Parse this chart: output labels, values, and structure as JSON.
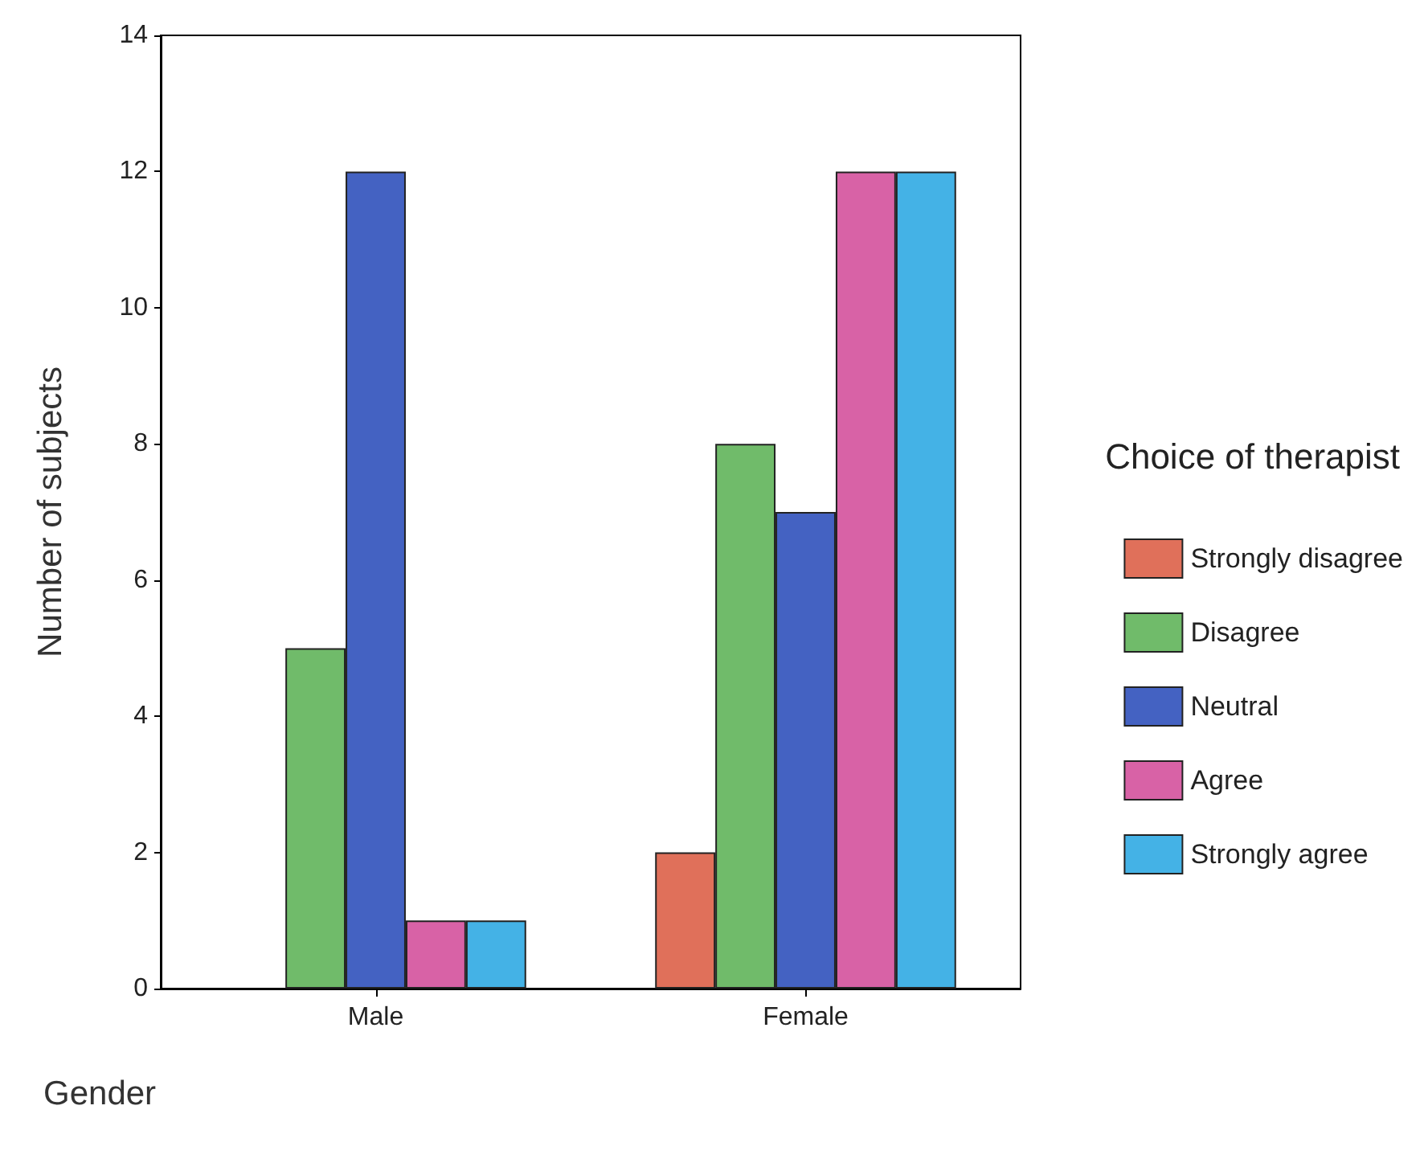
{
  "chart_data": {
    "type": "bar",
    "xlabel": "Gender",
    "ylabel": "Number of subjects",
    "legend_title": "Choice of therapist",
    "categories": [
      "Male",
      "Female"
    ],
    "series": [
      {
        "name": "Strongly disagree",
        "color": "#e0705a",
        "values": [
          null,
          2
        ]
      },
      {
        "name": "Disagree",
        "color": "#70bb6a",
        "values": [
          5,
          8
        ]
      },
      {
        "name": "Neutral",
        "color": "#4462c2",
        "values": [
          12,
          7
        ]
      },
      {
        "name": "Agree",
        "color": "#d862a6",
        "values": [
          1,
          12
        ]
      },
      {
        "name": "Strongly agree",
        "color": "#44b2e6",
        "values": [
          1,
          12
        ]
      }
    ],
    "ylim": [
      0,
      14
    ],
    "yticks": [
      0,
      2,
      4,
      6,
      8,
      10,
      12,
      14
    ],
    "grid": false,
    "legend": "right"
  }
}
